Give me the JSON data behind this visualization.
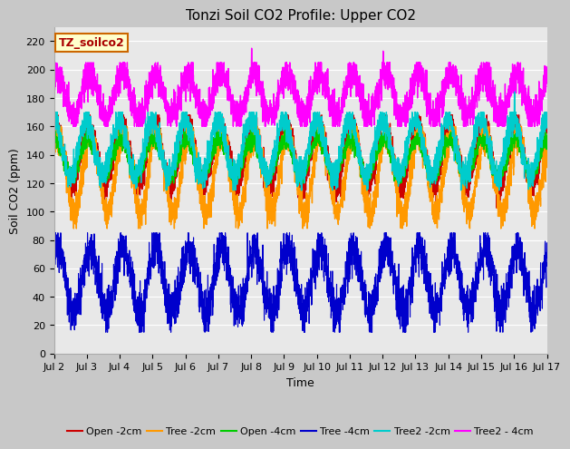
{
  "title": "Tonzi Soil CO2 Profile: Upper CO2",
  "xlabel": "Time",
  "ylabel": "Soil CO2 (ppm)",
  "ylim": [
    0,
    230
  ],
  "yticks": [
    0,
    20,
    40,
    60,
    80,
    100,
    120,
    140,
    160,
    180,
    200,
    220
  ],
  "xtick_labels": [
    "Jul 2",
    "Jul 3",
    "Jul 4",
    "Jul 5",
    "Jul 6",
    "Jul 7",
    "Jul 8",
    "Jul 9",
    "Jul 10",
    "Jul 11",
    "Jul 12",
    "Jul 13",
    "Jul 14",
    "Jul 15",
    "Jul 16",
    "Jul 17"
  ],
  "legend_label": "TZ_soilco2",
  "series_labels": [
    "Open -2cm",
    "Tree -2cm",
    "Open -4cm",
    "Tree -4cm",
    "Tree2 -2cm",
    "Tree2 - 4cm"
  ],
  "series_colors": [
    "#cc0000",
    "#ff9900",
    "#00cc00",
    "#0000cc",
    "#00cccc",
    "#ff00ff"
  ],
  "fig_bg_color": "#c8c8c8",
  "plot_bg_color": "#e8e8e8",
  "grid_color": "#ffffff",
  "title_fontsize": 11,
  "axis_label_fontsize": 9,
  "tick_fontsize": 8,
  "legend_fontsize": 8,
  "n_points": 3600,
  "days": 15
}
